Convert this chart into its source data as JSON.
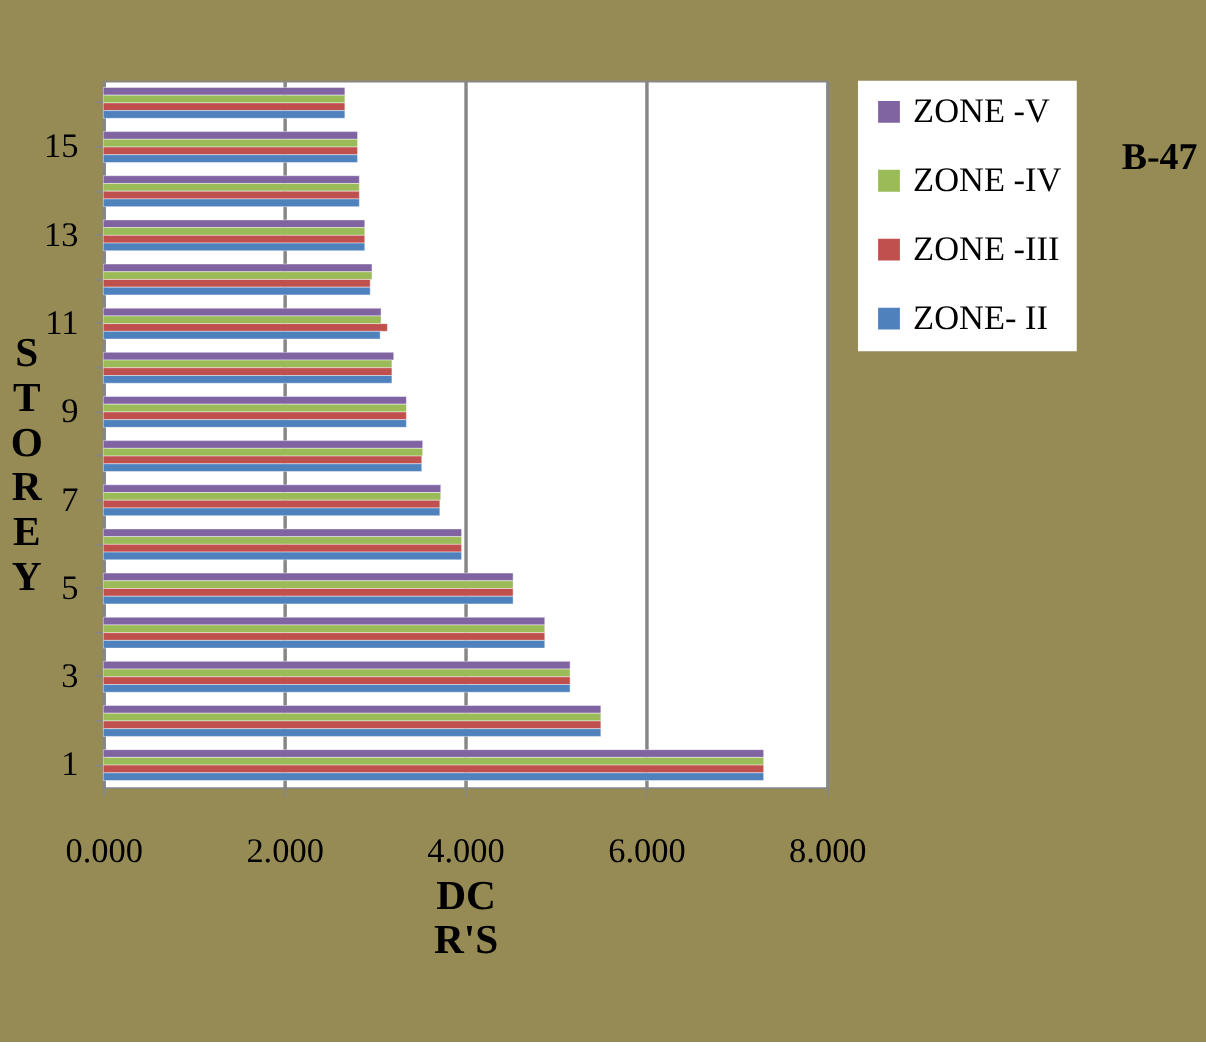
{
  "chart_data": {
    "type": "bar",
    "orientation": "horizontal",
    "title": "B-47",
    "xlabel": "DC R'S",
    "ylabel": "STOREY",
    "categories": [
      null,
      "15",
      null,
      "13",
      null,
      "11",
      null,
      "9",
      null,
      "7",
      null,
      "5",
      null,
      "3",
      null,
      "1"
    ],
    "series": [
      {
        "name": "ZONE -V",
        "color": "#8064a2",
        "values": [
          2.67,
          2.81,
          2.83,
          2.89,
          2.97,
          3.07,
          3.21,
          3.35,
          3.53,
          3.73,
          3.96,
          4.53,
          4.88,
          5.16,
          5.5,
          7.3
        ]
      },
      {
        "name": "ZONE -IV",
        "color": "#9bbb59",
        "values": [
          2.67,
          2.81,
          2.83,
          2.89,
          2.97,
          3.07,
          3.19,
          3.35,
          3.53,
          3.73,
          3.96,
          4.53,
          4.88,
          5.16,
          5.5,
          7.3
        ]
      },
      {
        "name": "ZONE -III",
        "color": "#c0504d",
        "values": [
          2.67,
          2.81,
          2.83,
          2.89,
          2.95,
          3.14,
          3.19,
          3.35,
          3.52,
          3.72,
          3.96,
          4.53,
          4.88,
          5.16,
          5.5,
          7.3
        ]
      },
      {
        "name": "ZONE- II",
        "color": "#4f81bd",
        "values": [
          2.67,
          2.81,
          2.83,
          2.89,
          2.95,
          3.06,
          3.19,
          3.35,
          3.52,
          3.72,
          3.96,
          4.53,
          4.88,
          5.16,
          5.5,
          7.3
        ]
      }
    ],
    "xlim": [
      0,
      8
    ],
    "xticks": [
      {
        "value": 0,
        "label": "0.000"
      },
      {
        "value": 2,
        "label": "2.000"
      },
      {
        "value": 4,
        "label": "4.000"
      },
      {
        "value": 6,
        "label": "6.000"
      },
      {
        "value": 8,
        "label": "8.000"
      }
    ],
    "grid": "x",
    "legend": "right"
  }
}
